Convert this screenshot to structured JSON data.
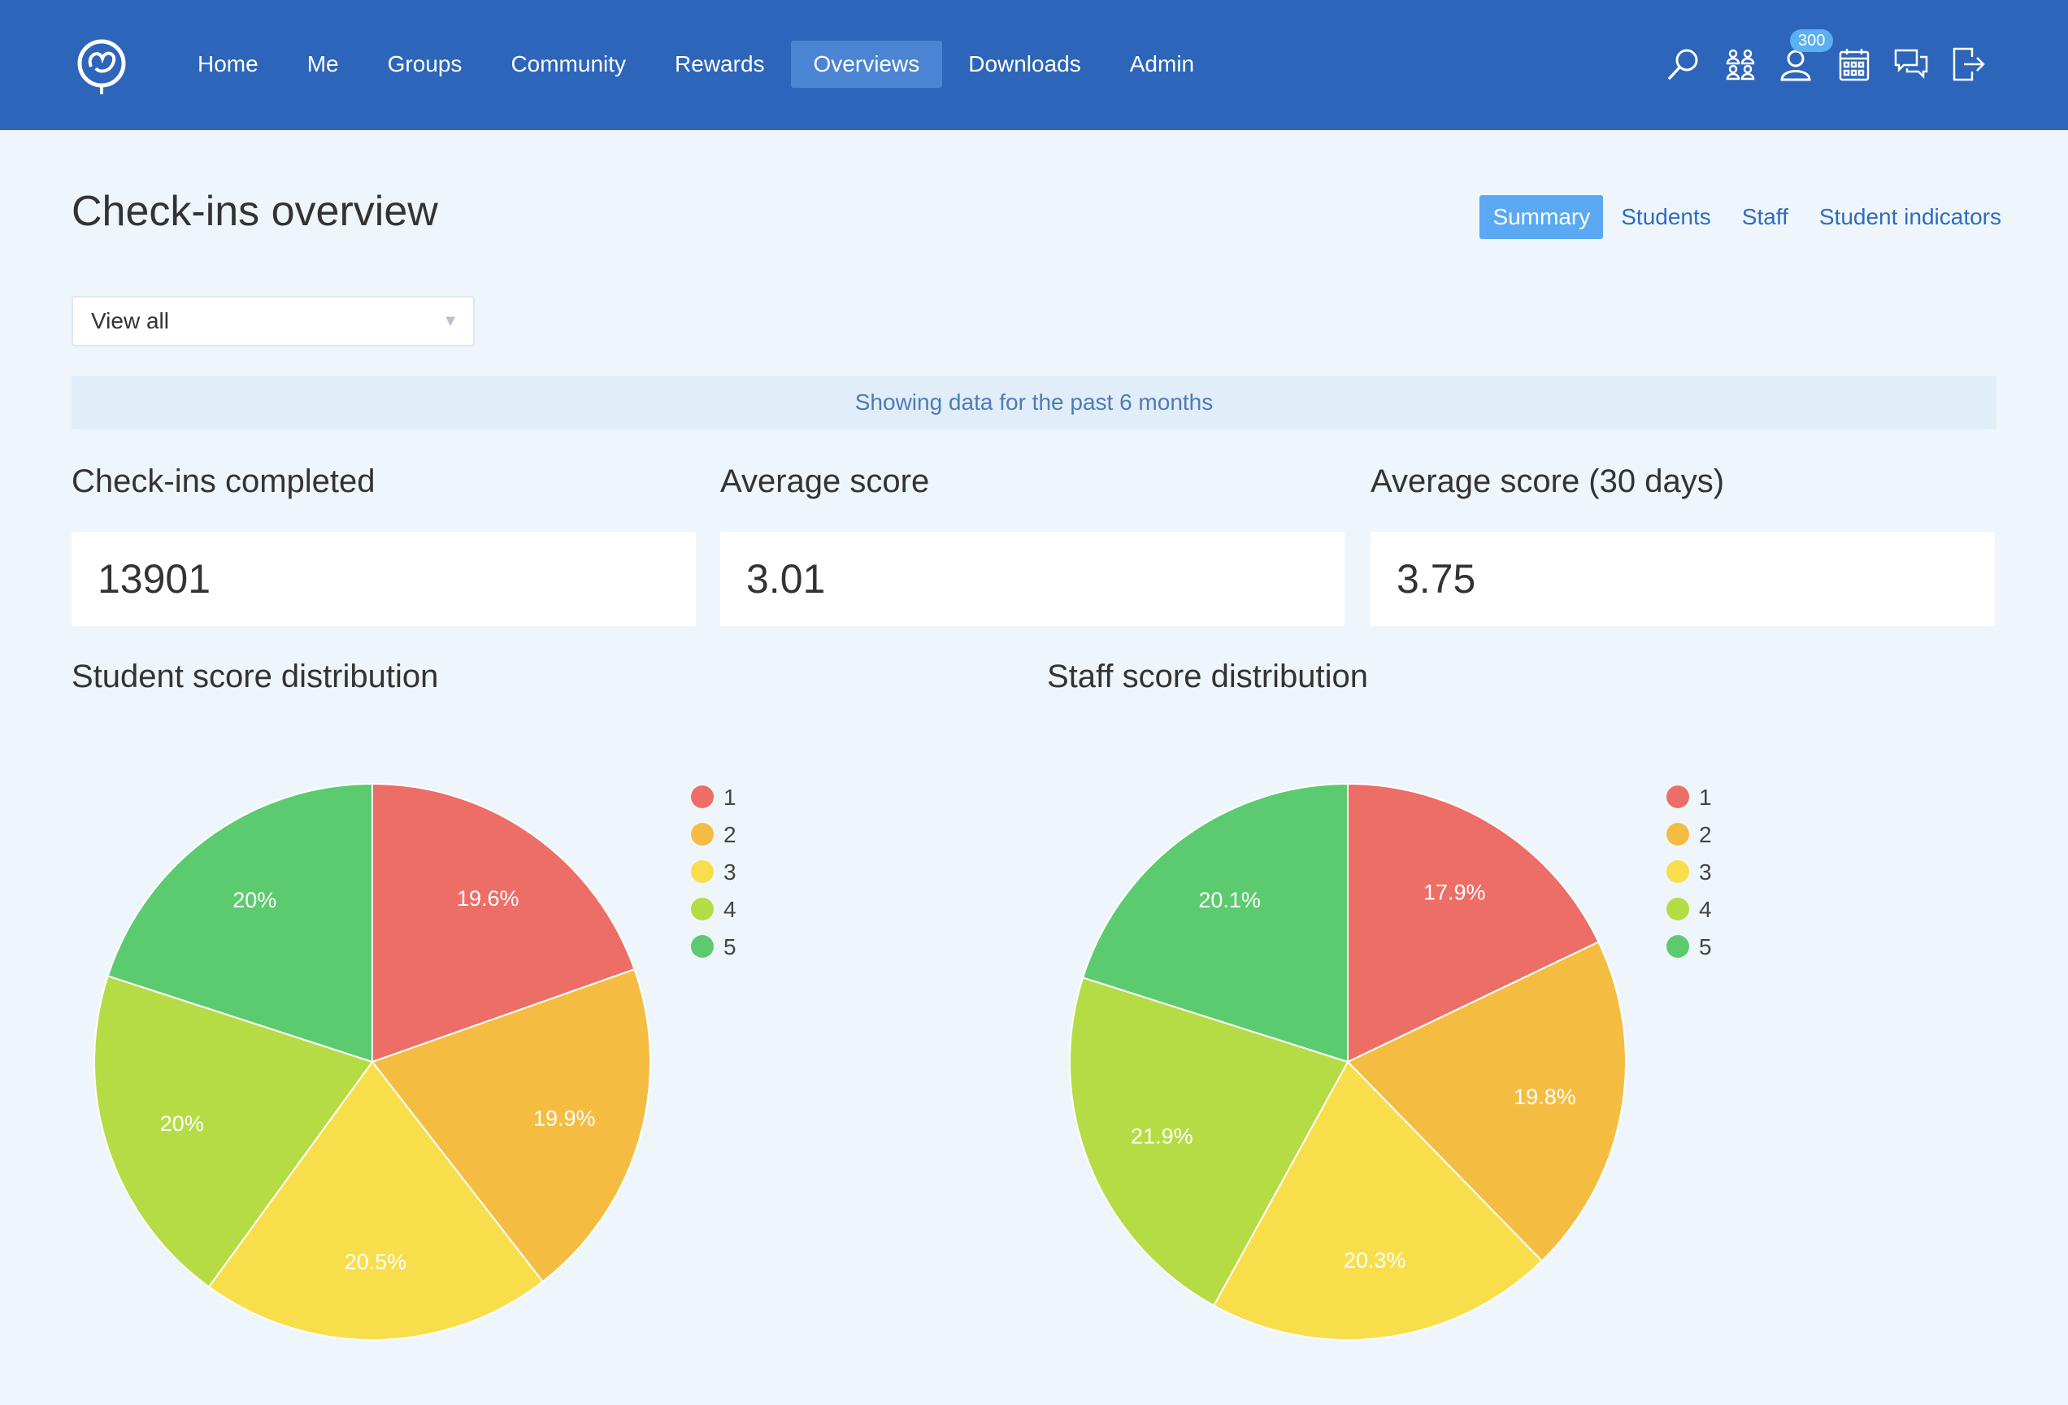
{
  "nav": {
    "items": [
      "Home",
      "Me",
      "Groups",
      "Community",
      "Rewards",
      "Overviews",
      "Downloads",
      "Admin"
    ],
    "active": "Overviews",
    "icons": [
      "search-icon",
      "groups-icon",
      "profile-icon",
      "calendar-icon",
      "chat-icon",
      "logout-icon"
    ],
    "badge": "300"
  },
  "page": {
    "title": "Check-ins overview",
    "tabs": [
      "Summary",
      "Students",
      "Staff",
      "Student indicators"
    ],
    "active_tab": "Summary",
    "filter": "View all",
    "info": "Showing data for the past 6 months"
  },
  "stats": [
    {
      "label": "Check-ins completed",
      "value": "13901"
    },
    {
      "label": "Average score",
      "value": "3.01"
    },
    {
      "label": "Average score (30 days)",
      "value": "3.75"
    }
  ],
  "colors": {
    "header": "#2c65b9",
    "accent": "#5aa9f2",
    "score_1": "#ed6e66",
    "score_2": "#f4bd42",
    "score_3": "#f9de4b",
    "score_4": "#b5dc45",
    "score_5": "#5ccb70"
  },
  "chart_data": [
    {
      "type": "pie",
      "title": "Student score distribution",
      "categories": [
        "1",
        "2",
        "3",
        "4",
        "5"
      ],
      "values": [
        19.6,
        19.9,
        20.5,
        20.0,
        20.0
      ],
      "labels": [
        "19.6%",
        "19.9%",
        "20.5%",
        "20%",
        "20%"
      ],
      "legend": "right"
    },
    {
      "type": "pie",
      "title": "Staff score distribution",
      "categories": [
        "1",
        "2",
        "3",
        "4",
        "5"
      ],
      "values": [
        17.9,
        19.8,
        20.3,
        21.9,
        20.1
      ],
      "labels": [
        "17.9%",
        "19.8%",
        "20.3%",
        "21.9%",
        "20.1%"
      ],
      "legend": "right"
    }
  ]
}
